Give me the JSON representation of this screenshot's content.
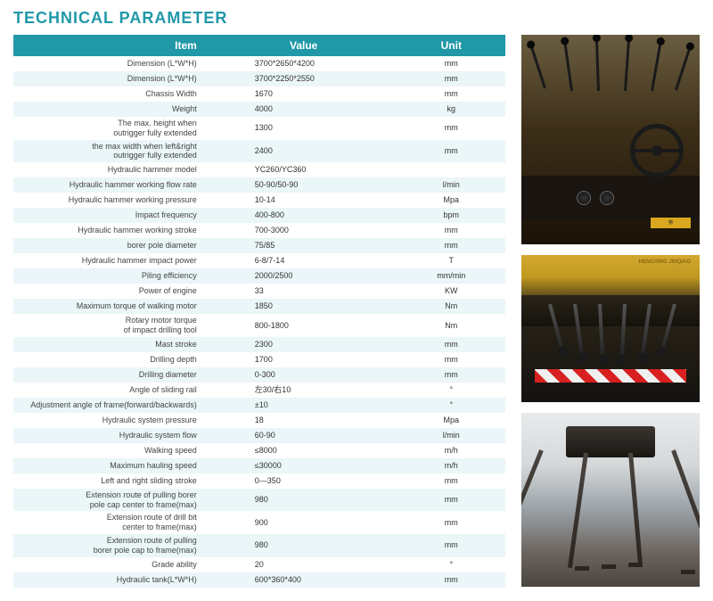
{
  "title": "TECHNICAL PARAMETER",
  "headers": {
    "item": "Item",
    "value": "Value",
    "unit": "Unit"
  },
  "rows": [
    {
      "item": "Dimension (L*W*H)",
      "value": "3700*2650*4200",
      "unit": "mm"
    },
    {
      "item": "Dimension (L*W*H)",
      "value": "3700*2250*2550",
      "unit": "mm"
    },
    {
      "item": "Chassis Width",
      "value": "1670",
      "unit": "mm"
    },
    {
      "item": "Weight",
      "value": "4000",
      "unit": "kg"
    },
    {
      "item": "The max. height when\noutrigger fully extended",
      "value": "1300",
      "unit": "mm"
    },
    {
      "item": "the max width when left&right\noutrigger fully extended",
      "value": "2400",
      "unit": "mm"
    },
    {
      "item": "Hydraulic hammer model",
      "value": "YC260/YC360",
      "unit": ""
    },
    {
      "item": "Hydraulic hammer working flow rate",
      "value": "50-90/50-90",
      "unit": "l/min"
    },
    {
      "item": "Hydraulic hammer working pressure",
      "value": "10-14",
      "unit": "Mpa"
    },
    {
      "item": "Impact frequency",
      "value": "400-800",
      "unit": "bpm"
    },
    {
      "item": "Hydraulic hammer working stroke",
      "value": "700-3000",
      "unit": "mm"
    },
    {
      "item": "borer pole diameter",
      "value": "75/85",
      "unit": "mm"
    },
    {
      "item": "Hydraulic hammer impact power",
      "value": "6-8/7-14",
      "unit": "T"
    },
    {
      "item": "Piling efficiency",
      "value": "2000/2500",
      "unit": "mm/min"
    },
    {
      "item": "Power of engine",
      "value": "33",
      "unit": "KW"
    },
    {
      "item": "Maximum torque of walking motor",
      "value": "1850",
      "unit": "Nm"
    },
    {
      "item": "Rotary motor torque\nof impact drilling tool",
      "value": "800-1800",
      "unit": "Nm"
    },
    {
      "item": "Mast stroke",
      "value": "2300",
      "unit": "mm"
    },
    {
      "item": "Drilling depth",
      "value": "1700",
      "unit": "mm"
    },
    {
      "item": "Drilling diameter",
      "value": "0-300",
      "unit": "mm"
    },
    {
      "item": "Angle of sliding rail",
      "value": "左30/右10",
      "unit": "°"
    },
    {
      "item": "Adjustment angle of frame(forward/backwards)",
      "value": "±10",
      "unit": "°"
    },
    {
      "item": "Hydraulic system pressure",
      "value": "18",
      "unit": "Mpa"
    },
    {
      "item": "Hydraulic system flow",
      "value": "60-90",
      "unit": "l/min"
    },
    {
      "item": "Walking speed",
      "value": "≤8000",
      "unit": "m/h"
    },
    {
      "item": "Maximum hauling speed",
      "value": "≤30000",
      "unit": "m/h"
    },
    {
      "item": "Left and right sliding stroke",
      "value": "0—350",
      "unit": "mm"
    },
    {
      "item": "Extension route of pulling borer\npole cap center to frame(max)",
      "value": "980",
      "unit": "mm"
    },
    {
      "item": "Extension route of drill bit\ncenter to frame(max)",
      "value": "900",
      "unit": "mm"
    },
    {
      "item": "Extension route of pulling\nborer pole cap to frame(max)",
      "value": "980",
      "unit": "mm"
    },
    {
      "item": "Grade ability",
      "value": "20",
      "unit": "°"
    },
    {
      "item": "Hydraulic tank(L*W*H)",
      "value": "600*360*400",
      "unit": "mm"
    }
  ],
  "images": {
    "img1_label": "物",
    "img2_brand": "HENGXING JINQIAO"
  },
  "colors": {
    "header_bg": "#2098a8",
    "row_alt": "#eaf6f7",
    "title": "#2098a8"
  }
}
